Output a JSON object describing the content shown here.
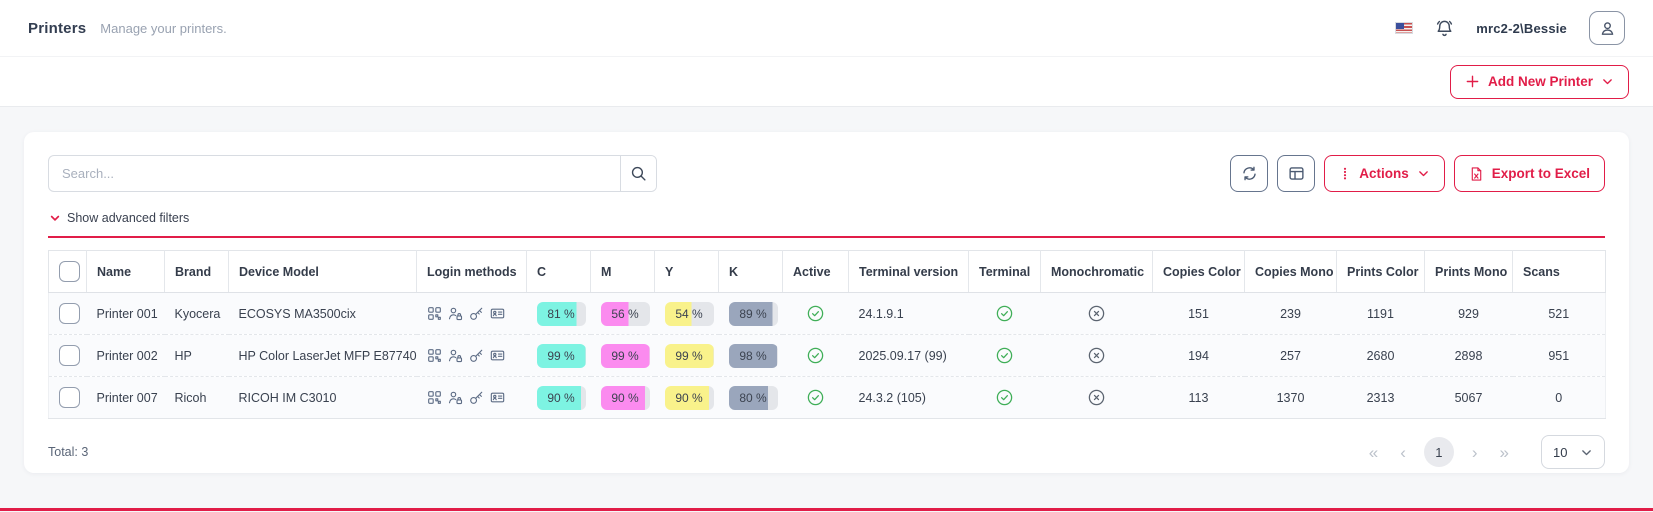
{
  "header": {
    "title": "Printers",
    "subtitle": "Manage your printers.",
    "username": "mrc2-2\\Bessie"
  },
  "toolbar": {
    "add_new_printer_label": "Add New Printer",
    "search_placeholder": "Search...",
    "actions_label": "Actions",
    "export_label": "Export to Excel",
    "show_filters_label": "Show advanced filters"
  },
  "table": {
    "columns": [
      {
        "key": "checkbox",
        "label": ""
      },
      {
        "key": "name",
        "label": "Name"
      },
      {
        "key": "brand",
        "label": "Brand"
      },
      {
        "key": "model",
        "label": "Device Model"
      },
      {
        "key": "login",
        "label": "Login methods"
      },
      {
        "key": "c",
        "label": "C"
      },
      {
        "key": "m",
        "label": "M"
      },
      {
        "key": "y",
        "label": "Y"
      },
      {
        "key": "k",
        "label": "K"
      },
      {
        "key": "active",
        "label": "Active"
      },
      {
        "key": "terminal_version",
        "label": "Terminal version"
      },
      {
        "key": "terminal",
        "label": "Terminal"
      },
      {
        "key": "monochromatic",
        "label": "Monochromatic"
      },
      {
        "key": "copies_color",
        "label": "Copies Color"
      },
      {
        "key": "copies_mono",
        "label": "Copies Mono"
      },
      {
        "key": "prints_color",
        "label": "Prints Color"
      },
      {
        "key": "prints_mono",
        "label": "Prints Mono"
      },
      {
        "key": "scans",
        "label": "Scans"
      }
    ],
    "rows": [
      {
        "name": "Printer 001",
        "brand": "Kyocera",
        "model": "ECOSYS MA3500cix",
        "login_methods": [
          "qr-code",
          "user-lock",
          "key",
          "id-card"
        ],
        "c": 81,
        "m": 56,
        "y": 54,
        "k": 89,
        "active": true,
        "terminal_version": "24.1.9.1",
        "terminal": true,
        "monochromatic": false,
        "copies_color": 151,
        "copies_mono": 239,
        "prints_color": 1191,
        "prints_mono": 929,
        "scans": 521
      },
      {
        "name": "Printer 002",
        "brand": "HP",
        "model": "HP Color LaserJet MFP E87740",
        "login_methods": [
          "qr-code",
          "user-lock",
          "key",
          "id-card"
        ],
        "c": 99,
        "m": 99,
        "y": 99,
        "k": 98,
        "active": true,
        "terminal_version": "2025.09.17 (99)",
        "terminal": true,
        "monochromatic": false,
        "copies_color": 194,
        "copies_mono": 257,
        "prints_color": 2680,
        "prints_mono": 2898,
        "scans": 951
      },
      {
        "name": "Printer 007",
        "brand": "Ricoh",
        "model": "RICOH IM C3010",
        "login_methods": [
          "qr-code",
          "user-lock",
          "key",
          "id-card"
        ],
        "c": 90,
        "m": 90,
        "y": 90,
        "k": 80,
        "active": true,
        "terminal_version": "24.3.2 (105)",
        "terminal": true,
        "monochromatic": false,
        "copies_color": 113,
        "copies_mono": 1370,
        "prints_color": 2313,
        "prints_mono": 5067,
        "scans": 0
      }
    ]
  },
  "footer": {
    "total": "Total: 3",
    "current_page": "1",
    "page_size": "10"
  },
  "colors": {
    "accent": "#e11d48",
    "cyan": "#7df3e2",
    "magenta": "#fb8bef",
    "yellow": "#f9f28b",
    "black_ink": "#9aa6bc",
    "badge_empty": "#e4e6ea",
    "success_green": "#3fae57",
    "muted_gray": "#5b6470"
  }
}
